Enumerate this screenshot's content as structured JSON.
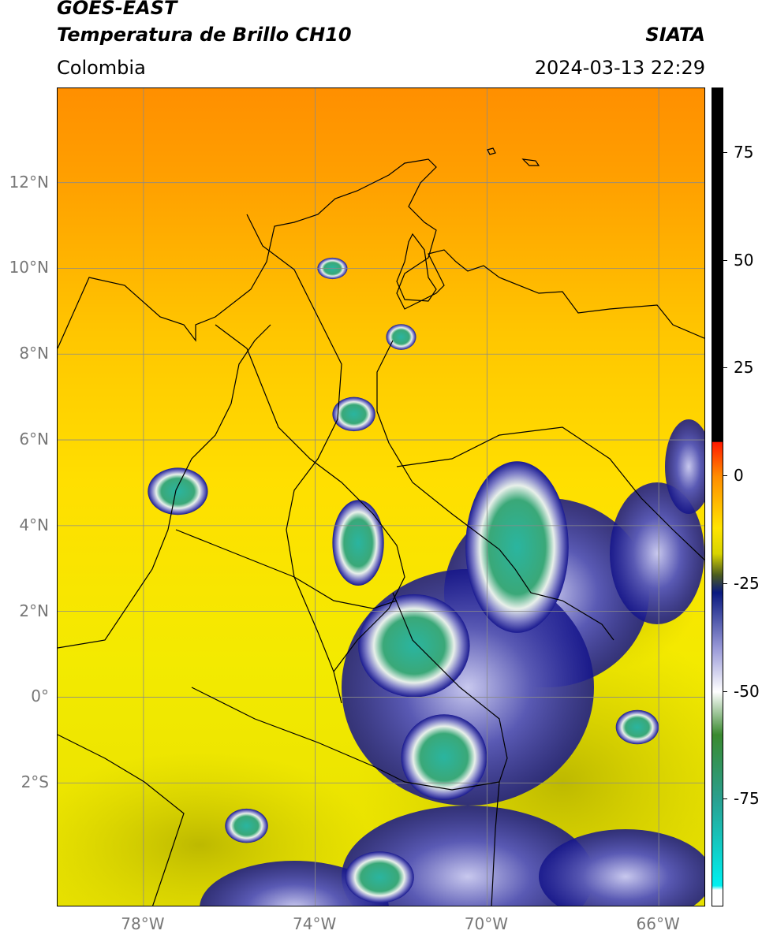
{
  "header": {
    "satellite": "GOES-EAST",
    "product": "Temperatura de Brillo CH10",
    "region": "Colombia",
    "agency": "SIATA",
    "datetime": "2024-03-13 22:29"
  },
  "map": {
    "lon_range": [
      -80,
      -64.9
    ],
    "lat_range": [
      -4.9,
      14.2
    ],
    "lat_labels": [
      {
        "value": 12,
        "text": "12°N"
      },
      {
        "value": 10,
        "text": "10°N"
      },
      {
        "value": 8,
        "text": "8°N"
      },
      {
        "value": 6,
        "text": "6°N"
      },
      {
        "value": 4,
        "text": "4°N"
      },
      {
        "value": 2,
        "text": "2°N"
      },
      {
        "value": 0,
        "text": "0°"
      },
      {
        "value": -2,
        "text": "2°S"
      }
    ],
    "lon_labels": [
      {
        "value": -78,
        "text": "78°W"
      },
      {
        "value": -74,
        "text": "74°W"
      },
      {
        "value": -70,
        "text": "70°W"
      },
      {
        "value": -66,
        "text": "66°W"
      }
    ],
    "gridline_color": "#8a8a8a",
    "cloud_tops": [
      {
        "name": "uraba-cell",
        "lon": -77.2,
        "lat": 4.8,
        "rx": 0.7,
        "ry": 0.55
      },
      {
        "name": "magdalena-medio-cell",
        "lon": -73.1,
        "lat": 6.6,
        "rx": 0.5,
        "ry": 0.4
      },
      {
        "name": "cesar-cell",
        "lon": -73.6,
        "lat": 10.0,
        "rx": 0.35,
        "ry": 0.25
      },
      {
        "name": "catatumbo-cell",
        "lon": -72.0,
        "lat": 8.4,
        "rx": 0.35,
        "ry": 0.3
      },
      {
        "name": "meta-cell",
        "lon": -73.0,
        "lat": 3.6,
        "rx": 0.6,
        "ry": 1.0
      },
      {
        "name": "guaviare-cell",
        "lon": -71.7,
        "lat": 1.2,
        "rx": 1.3,
        "ry": 1.2
      },
      {
        "name": "vaupes-cell",
        "lon": -71.0,
        "lat": -1.4,
        "rx": 1.0,
        "ry": 1.0
      },
      {
        "name": "amazonas-cell",
        "lon": -72.5,
        "lat": -4.2,
        "rx": 0.8,
        "ry": 0.6
      },
      {
        "name": "putumayo-cell",
        "lon": -75.6,
        "lat": -3.0,
        "rx": 0.5,
        "ry": 0.4
      },
      {
        "name": "venezuela-cell",
        "lon": -69.3,
        "lat": 3.5,
        "rx": 1.2,
        "ry": 2.0
      },
      {
        "name": "east-cell",
        "lon": -66.5,
        "lat": -0.7,
        "rx": 0.5,
        "ry": 0.4
      }
    ]
  },
  "colorbar": {
    "range": [
      -100,
      90
    ],
    "ticks": [
      {
        "value": 75,
        "text": "75"
      },
      {
        "value": 50,
        "text": "50"
      },
      {
        "value": 25,
        "text": "25"
      },
      {
        "value": 0,
        "text": "0"
      },
      {
        "value": -25,
        "text": "-25"
      },
      {
        "value": -50,
        "text": "-50"
      },
      {
        "value": -75,
        "text": "-75"
      }
    ],
    "stops": [
      {
        "value": 90,
        "color": "#000000"
      },
      {
        "value": 8,
        "color": "#000000"
      },
      {
        "value": 7.9,
        "color": "#ff1a00"
      },
      {
        "value": 0,
        "color": "#ff8c00"
      },
      {
        "value": -12,
        "color": "#ffe400"
      },
      {
        "value": -18,
        "color": "#d8d400"
      },
      {
        "value": -23,
        "color": "#4a5a20"
      },
      {
        "value": -27,
        "color": "#0a1a80"
      },
      {
        "value": -40,
        "color": "#9a9ad8"
      },
      {
        "value": -50,
        "color": "#ffffff"
      },
      {
        "value": -60,
        "color": "#3a8a30"
      },
      {
        "value": -75,
        "color": "#2aa090"
      },
      {
        "value": -95,
        "color": "#00f0f0"
      },
      {
        "value": -96,
        "color": "#ffffff"
      },
      {
        "value": -100,
        "color": "#ffffff"
      }
    ]
  }
}
